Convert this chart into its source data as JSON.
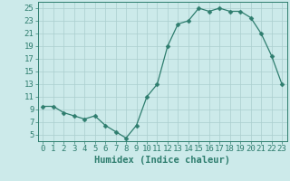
{
  "x": [
    0,
    1,
    2,
    3,
    4,
    5,
    6,
    7,
    8,
    9,
    10,
    11,
    12,
    13,
    14,
    15,
    16,
    17,
    18,
    19,
    20,
    21,
    22,
    23
  ],
  "y": [
    9.5,
    9.5,
    8.5,
    8.0,
    7.5,
    8.0,
    6.5,
    5.5,
    4.5,
    6.5,
    11,
    13,
    19,
    22.5,
    23,
    25,
    24.5,
    25,
    24.5,
    24.5,
    23.5,
    21,
    17.5,
    13
  ],
  "line_color": "#2e7d6e",
  "marker": "D",
  "markersize": 2.5,
  "bg_color": "#cceaea",
  "grid_color": "#aacece",
  "xlabel": "Humidex (Indice chaleur)",
  "xlim": [
    -0.5,
    23.5
  ],
  "ylim": [
    4,
    26
  ],
  "yticks": [
    5,
    7,
    9,
    11,
    13,
    15,
    17,
    19,
    21,
    23,
    25
  ],
  "xticks": [
    0,
    1,
    2,
    3,
    4,
    5,
    6,
    7,
    8,
    9,
    10,
    11,
    12,
    13,
    14,
    15,
    16,
    17,
    18,
    19,
    20,
    21,
    22,
    23
  ],
  "tick_color": "#2e7d6e",
  "axis_color": "#2e7d6e",
  "xlabel_fontsize": 7.5,
  "tick_fontsize": 6.5
}
